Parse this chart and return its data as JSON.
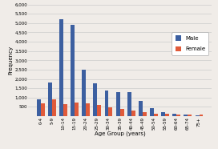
{
  "categories": [
    "0-4",
    "5-9",
    "10-14",
    "15-19",
    "20-24",
    "25-29",
    "30-34",
    "35-39",
    "40-44",
    "45-49",
    "50-54",
    "55-59",
    "60-64",
    "65-74",
    "75+"
  ],
  "male": [
    900,
    1800,
    5200,
    4900,
    2500,
    1750,
    1400,
    1300,
    1300,
    800,
    450,
    200,
    130,
    100,
    50
  ],
  "female": [
    700,
    900,
    650,
    750,
    700,
    600,
    470,
    370,
    310,
    210,
    120,
    120,
    100,
    80,
    70
  ],
  "male_color": "#3c5fa0",
  "female_color": "#e05a3a",
  "xlabel": "Age Group (years)",
  "ylabel": "Frequency",
  "ylim": [
    0,
    6000
  ],
  "ytick_step": 500,
  "legend_labels": [
    "Male",
    "Female"
  ],
  "background_color": "#f0ece8",
  "plot_bg_color": "#f0ece8",
  "grid_color": "#cccccc",
  "axis_fontsize": 5,
  "tick_fontsize": 4,
  "legend_fontsize": 5,
  "bar_width": 0.35
}
